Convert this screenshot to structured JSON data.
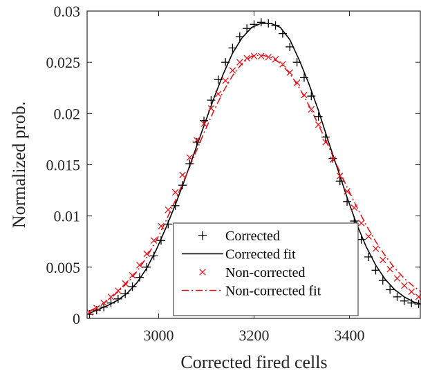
{
  "chart_data": {
    "type": "scatter",
    "xlabel": "Corrected fired cells",
    "ylabel": "Normalized prob.",
    "xlim": [
      2850,
      3550
    ],
    "ylim": [
      0,
      0.03
    ],
    "xticks": [
      3000,
      3200,
      3400
    ],
    "xtick_labels": [
      "3000",
      "3200",
      "3400"
    ],
    "yticks": [
      0,
      0.005,
      0.01,
      0.015,
      0.02,
      0.025,
      0.03
    ],
    "ytick_labels": [
      "0",
      "0.005",
      "0.01",
      "0.015",
      "0.02",
      "0.025",
      "0.03"
    ],
    "grid": false,
    "legend_position": "bottom-center",
    "series": [
      {
        "name": "Corrected",
        "kind": "markers",
        "marker": "plus",
        "color": "#000000",
        "x": [
          2855,
          2870,
          2885,
          2900,
          2915,
          2930,
          2945,
          2960,
          2975,
          2990,
          3005,
          3020,
          3035,
          3050,
          3065,
          3080,
          3095,
          3110,
          3125,
          3140,
          3155,
          3170,
          3185,
          3200,
          3215,
          3230,
          3245,
          3260,
          3275,
          3290,
          3305,
          3320,
          3335,
          3350,
          3365,
          3380,
          3395,
          3410,
          3425,
          3440,
          3455,
          3470,
          3485,
          3500,
          3515,
          3530,
          3545
        ],
        "y": [
          0.0004,
          0.0008,
          0.0011,
          0.0015,
          0.0019,
          0.0024,
          0.0031,
          0.004,
          0.005,
          0.0061,
          0.0076,
          0.0092,
          0.011,
          0.013,
          0.0151,
          0.0172,
          0.0193,
          0.0213,
          0.0233,
          0.025,
          0.0264,
          0.0275,
          0.0283,
          0.0287,
          0.0289,
          0.0288,
          0.0286,
          0.0278,
          0.0265,
          0.025,
          0.0235,
          0.0217,
          0.0197,
          0.0177,
          0.0156,
          0.0134,
          0.0114,
          0.0095,
          0.0077,
          0.006,
          0.0047,
          0.0037,
          0.0028,
          0.0021,
          0.0017,
          0.0015,
          0.0014
        ]
      },
      {
        "name": "Corrected fit",
        "kind": "line",
        "dash": "solid",
        "color": "#000000",
        "x": [
          2855,
          2875,
          2895,
          2915,
          2935,
          2955,
          2975,
          2995,
          3015,
          3035,
          3055,
          3075,
          3095,
          3115,
          3135,
          3155,
          3175,
          3195,
          3215,
          3235,
          3255,
          3275,
          3295,
          3315,
          3335,
          3355,
          3375,
          3395,
          3415,
          3435,
          3455,
          3475,
          3495,
          3515,
          3535,
          3550
        ],
        "y": [
          0.0005,
          0.0009,
          0.0013,
          0.0018,
          0.0025,
          0.0035,
          0.0049,
          0.0067,
          0.0088,
          0.0111,
          0.0136,
          0.0162,
          0.0188,
          0.0214,
          0.0238,
          0.0259,
          0.0274,
          0.0284,
          0.0288,
          0.0288,
          0.0284,
          0.0272,
          0.0252,
          0.0229,
          0.0203,
          0.0174,
          0.0146,
          0.0118,
          0.0092,
          0.007,
          0.0052,
          0.0038,
          0.0028,
          0.0021,
          0.0016,
          0.0014
        ]
      },
      {
        "name": "Non-corrected",
        "kind": "markers",
        "marker": "cross",
        "color": "#e8141c",
        "x": [
          2855,
          2870,
          2885,
          2900,
          2915,
          2930,
          2945,
          2960,
          2975,
          2990,
          3005,
          3020,
          3035,
          3050,
          3065,
          3080,
          3095,
          3110,
          3125,
          3140,
          3155,
          3170,
          3185,
          3200,
          3215,
          3230,
          3245,
          3260,
          3275,
          3290,
          3305,
          3320,
          3335,
          3350,
          3365,
          3380,
          3395,
          3410,
          3425,
          3440,
          3455,
          3470,
          3485,
          3500,
          3515,
          3530,
          3545
        ],
        "y": [
          0.0006,
          0.001,
          0.0015,
          0.0021,
          0.0027,
          0.0034,
          0.0042,
          0.0052,
          0.0063,
          0.0076,
          0.009,
          0.0106,
          0.0123,
          0.014,
          0.0157,
          0.0174,
          0.019,
          0.0205,
          0.0219,
          0.0232,
          0.0242,
          0.025,
          0.0254,
          0.0256,
          0.0256,
          0.0255,
          0.0253,
          0.0248,
          0.024,
          0.023,
          0.0218,
          0.0204,
          0.0189,
          0.0172,
          0.0155,
          0.0139,
          0.0124,
          0.0108,
          0.0093,
          0.008,
          0.0068,
          0.0057,
          0.0048,
          0.0039,
          0.0032,
          0.0026,
          0.0021
        ]
      },
      {
        "name": "Non-corrected fit",
        "kind": "line",
        "dash": "dashdot",
        "color": "#e8141c",
        "x": [
          2855,
          2875,
          2895,
          2915,
          2935,
          2955,
          2975,
          2995,
          3015,
          3035,
          3055,
          3075,
          3095,
          3115,
          3135,
          3155,
          3175,
          3195,
          3215,
          3235,
          3255,
          3275,
          3295,
          3315,
          3335,
          3355,
          3375,
          3395,
          3415,
          3435,
          3455,
          3475,
          3495,
          3515,
          3535,
          3550
        ],
        "y": [
          0.0007,
          0.0012,
          0.0018,
          0.0026,
          0.0035,
          0.0046,
          0.006,
          0.0076,
          0.0095,
          0.0115,
          0.0137,
          0.0159,
          0.0181,
          0.0202,
          0.0221,
          0.0237,
          0.0249,
          0.0256,
          0.0257,
          0.0255,
          0.0249,
          0.0239,
          0.0225,
          0.0208,
          0.0189,
          0.0169,
          0.0148,
          0.0128,
          0.0109,
          0.0091,
          0.0075,
          0.0061,
          0.0049,
          0.0039,
          0.0031,
          0.0026
        ]
      }
    ]
  }
}
